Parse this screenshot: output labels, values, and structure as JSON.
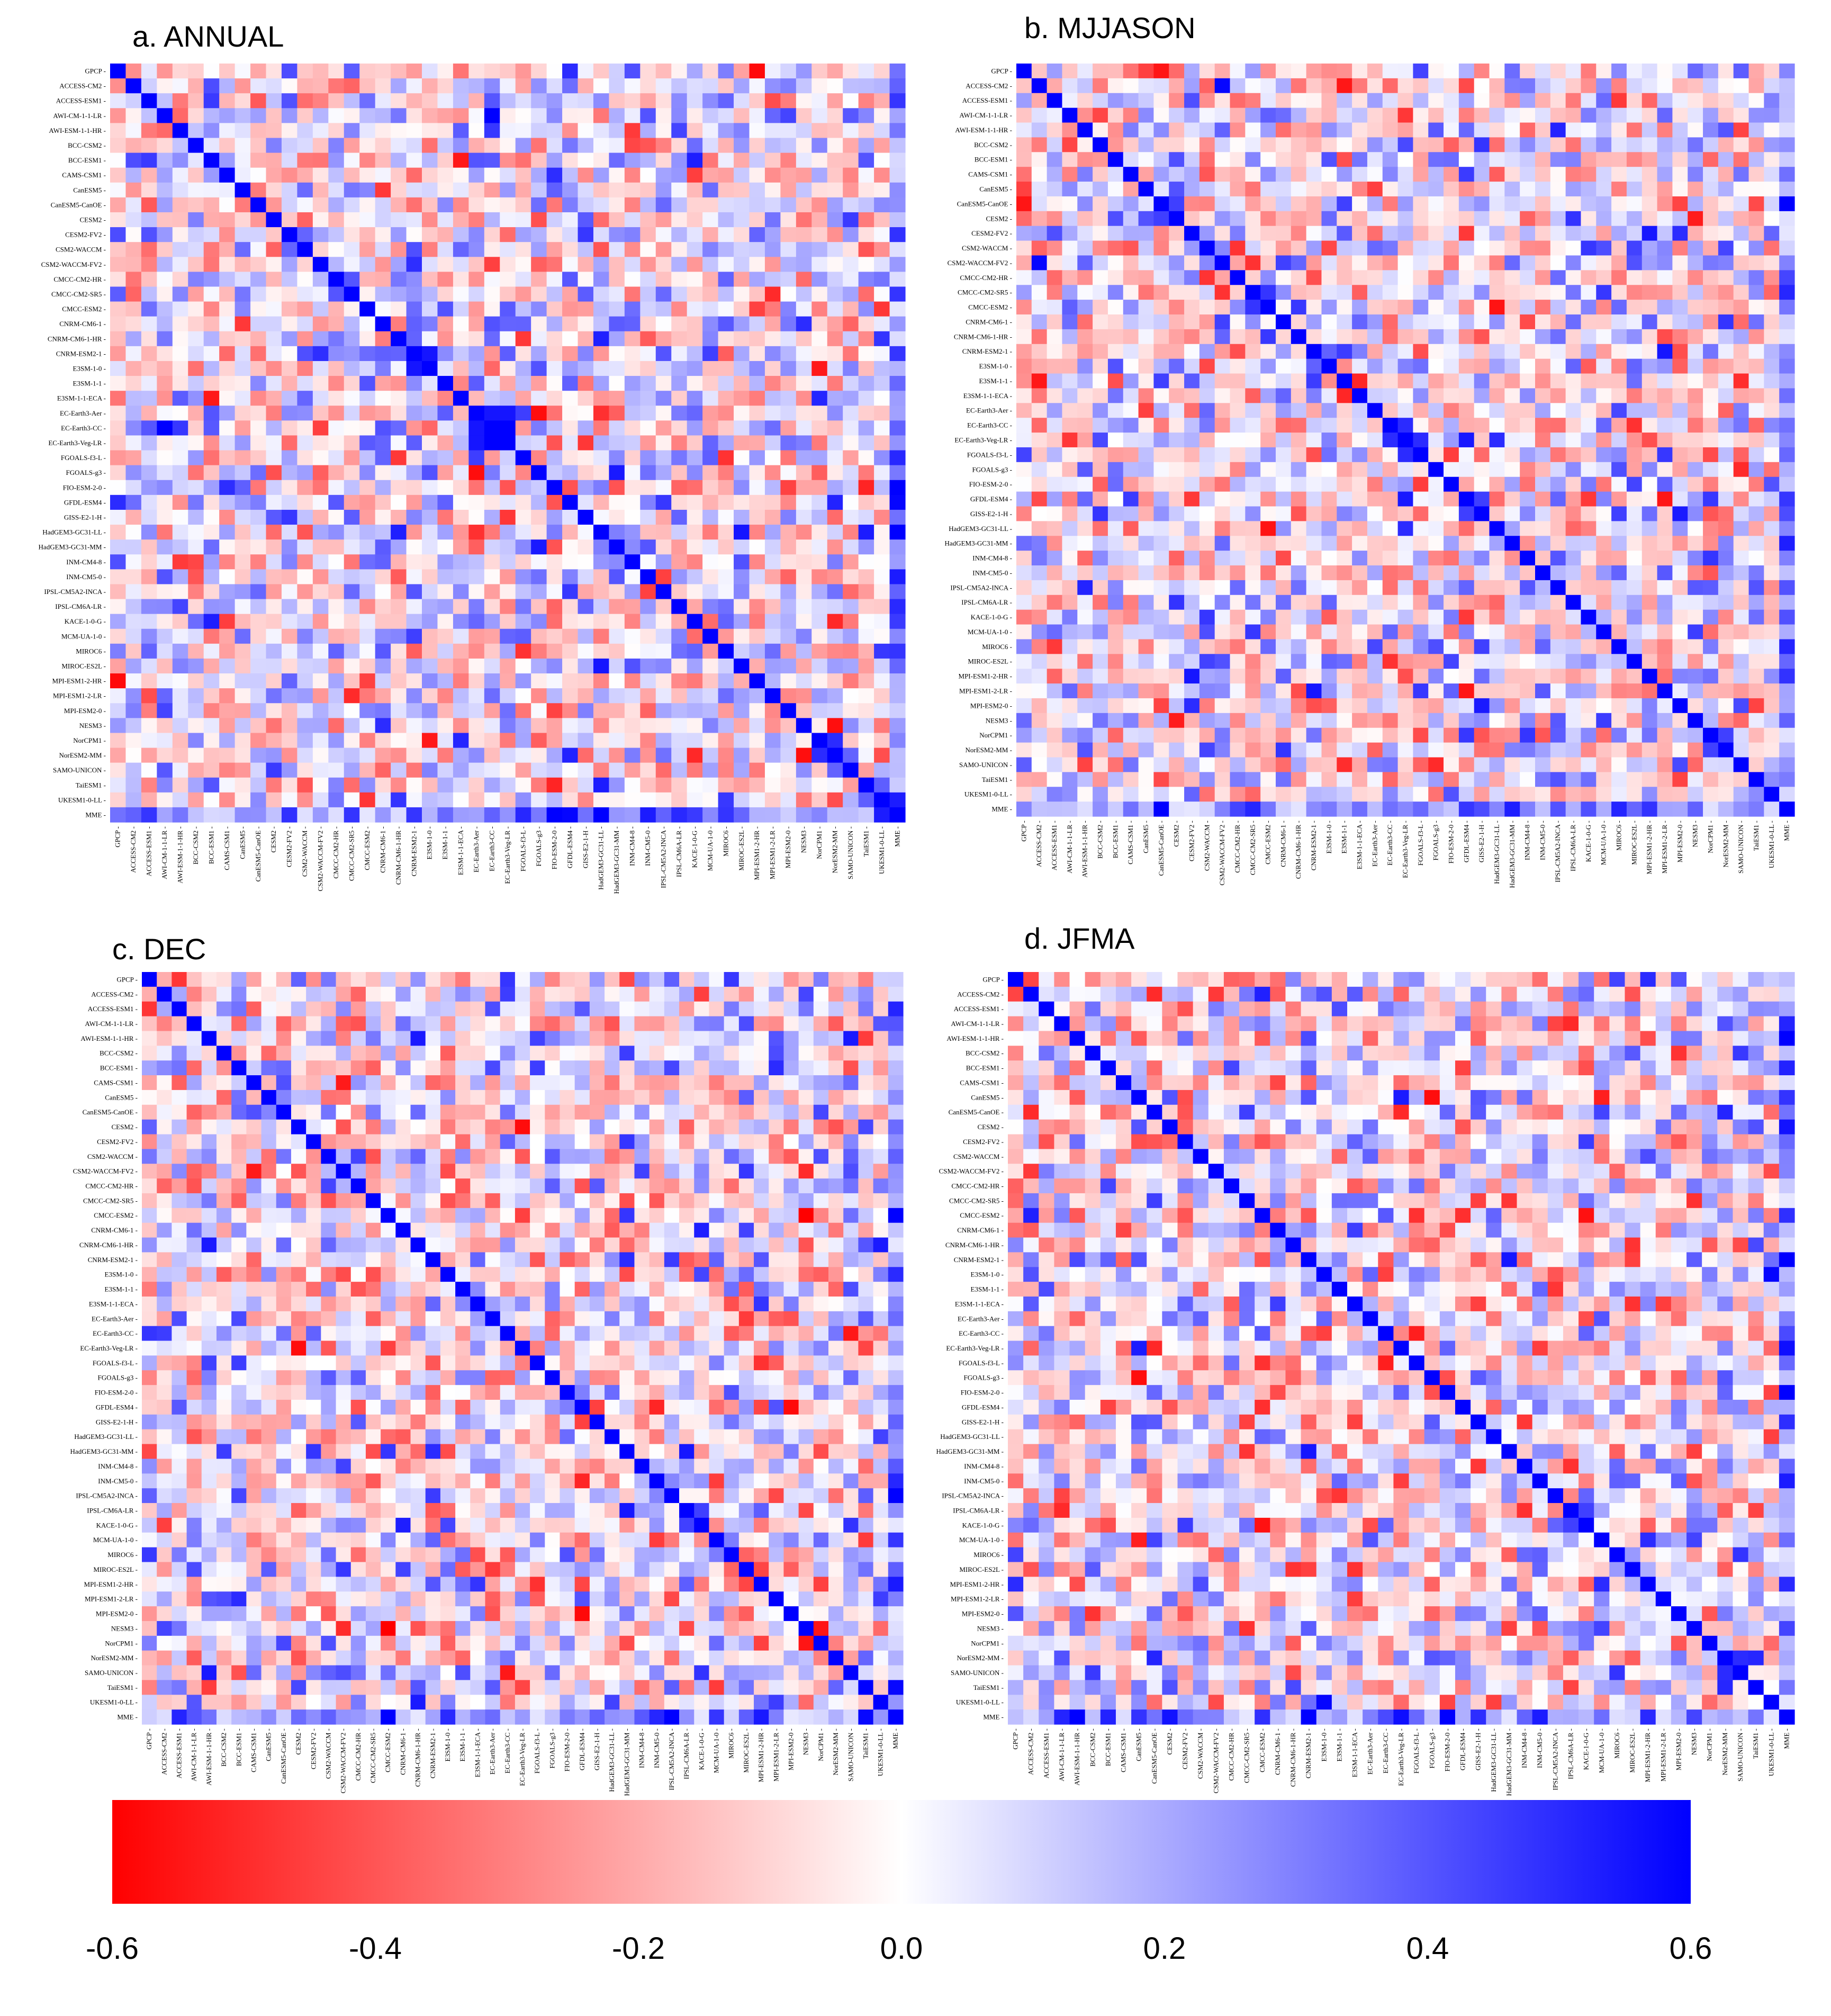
{
  "colors": {
    "negative": "#ff0000",
    "zero": "#ffffff",
    "positive": "#0000ff"
  },
  "models": [
    "GPCP",
    "ACCESS-CM2",
    "ACCESS-ESM1",
    "AWI-CM-1-1-LR",
    "AWI-ESM-1-1-HR",
    "BCC-CSM2",
    "BCC-ESM1",
    "CAMS-CSM1",
    "CanESM5",
    "CanESM5-CanOE",
    "CESM2",
    "CESM2-FV2",
    "CSM2-WACCM",
    "CSM2-WACCM-FV2",
    "CMCC-CM2-HR",
    "CMCC-CM2-SR5",
    "CMCC-ESM2",
    "CNRM-CM6-1",
    "CNRM-CM6-1-HR",
    "CNRM-ESM2-1",
    "E3SM-1-0",
    "E3SM-1-1",
    "E3SM-1-1-ECA",
    "EC-Earth3-Aer",
    "EC-Earth3-CC",
    "EC-Earth3-Veg-LR",
    "FGOALS-f3-L",
    "FGOALS-g3",
    "FIO-ESM-2-0",
    "GFDL-ESM4",
    "GISS-E2-1-H",
    "HadGEM3-GC31-LL",
    "HadGEM3-GC31-MM",
    "INM-CM4-8",
    "INM-CM5-0",
    "IPSL-CM5A2-INCA",
    "IPSL-CM6A-LR",
    "KACE-1-0-G",
    "MCM-UA-1-0",
    "MIROC6",
    "MIROC-ES2L",
    "MPI-ESM1-2-HR",
    "MPI-ESM1-2-LR",
    "MPI-ESM2-0",
    "NESM3",
    "NorCPM1",
    "NorESM2-MM",
    "SAMO-UNICON",
    "TaiESM1",
    "UKESM1-0-LL",
    "MME"
  ],
  "chart_data": {
    "type": "heatmap",
    "value_range": [
      -0.6,
      0.6
    ],
    "diagonal_value": 0.6,
    "panels": [
      {
        "id": "annual",
        "title": "a. ANNUAL",
        "seed": 11,
        "strong_cells": [
          [
            31,
            40,
            0.55
          ],
          [
            19,
            20,
            0.55
          ],
          [
            34,
            35,
            -0.45
          ],
          [
            12,
            48,
            -0.4
          ],
          [
            24,
            25,
            0.6
          ],
          [
            23,
            25,
            0.55
          ],
          [
            23,
            24,
            0.55
          ],
          [
            0,
            29,
            0.5
          ],
          [
            45,
            46,
            0.5
          ]
        ]
      },
      {
        "id": "mjjason",
        "title": "b. MJJASON",
        "seed": 23,
        "strong_cells": [
          [
            0,
            9,
            -0.55
          ],
          [
            0,
            8,
            -0.45
          ],
          [
            25,
            26,
            0.5
          ],
          [
            19,
            42,
            0.55
          ],
          [
            30,
            39,
            0.45
          ],
          [
            8,
            23,
            -0.45
          ],
          [
            13,
            17,
            0.45
          ],
          [
            45,
            46,
            0.45
          ]
        ]
      },
      {
        "id": "dec",
        "title": "c. DEC",
        "seed": 37,
        "strong_cells": [
          [
            16,
            44,
            -0.6
          ],
          [
            44,
            45,
            -0.55
          ],
          [
            44,
            16,
            -0.6
          ],
          [
            13,
            44,
            -0.5
          ],
          [
            19,
            32,
            0.5
          ],
          [
            14,
            21,
            -0.4
          ],
          [
            29,
            30,
            -0.45
          ],
          [
            36,
            37,
            0.45
          ],
          [
            45,
            41,
            -0.45
          ],
          [
            10,
            13,
            -0.4
          ]
        ]
      },
      {
        "id": "jfma",
        "title": "d. JFMA",
        "seed": 53,
        "strong_cells": [
          [
            19,
            32,
            0.55
          ],
          [
            38,
            41,
            0.5
          ],
          [
            32,
            44,
            -0.45
          ],
          [
            0,
            41,
            0.5
          ],
          [
            22,
            30,
            -0.45
          ],
          [
            36,
            37,
            0.45
          ],
          [
            10,
            29,
            -0.4
          ],
          [
            46,
            47,
            0.5
          ],
          [
            31,
            49,
            -0.45
          ]
        ]
      }
    ],
    "colorbar": {
      "ticks": [
        "-0.6",
        "-0.4",
        "-0.2",
        "0.0",
        "0.2",
        "0.4",
        "0.6"
      ]
    }
  }
}
